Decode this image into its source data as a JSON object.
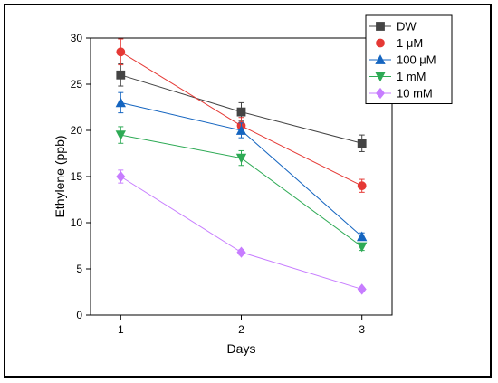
{
  "chart_data": {
    "type": "line",
    "title": "",
    "xlabel": "Days",
    "ylabel": "Ethylene (ppb)",
    "x": [
      1,
      2,
      3
    ],
    "xlim": [
      0.75,
      3.25
    ],
    "ylim": [
      0,
      30
    ],
    "x_ticks": [
      1,
      2,
      3
    ],
    "y_ticks": [
      0,
      5,
      10,
      15,
      20,
      25,
      30
    ],
    "grid": false,
    "legend_position": "top-right",
    "series": [
      {
        "name": "DW",
        "values": [
          26.0,
          22.0,
          18.6
        ],
        "errors": [
          1.2,
          1.0,
          0.9
        ],
        "color": "#444444",
        "marker": "square"
      },
      {
        "name": "1 μM",
        "values": [
          28.5,
          20.5,
          14.0
        ],
        "errors": [
          1.4,
          0.9,
          0.7
        ],
        "color": "#e53935",
        "marker": "circle"
      },
      {
        "name": "100 μM",
        "values": [
          23.0,
          20.0,
          8.5
        ],
        "errors": [
          1.1,
          0.8,
          0.4
        ],
        "color": "#1565c0",
        "marker": "triangle-up"
      },
      {
        "name": "1 mM",
        "values": [
          19.5,
          17.0,
          7.4
        ],
        "errors": [
          0.9,
          0.8,
          0.4
        ],
        "color": "#2eaa55",
        "marker": "triangle-down"
      },
      {
        "name": "10 mM",
        "values": [
          15.0,
          6.8,
          2.8
        ],
        "errors": [
          0.7,
          0.3,
          0.2
        ],
        "color": "#c77dff",
        "marker": "diamond"
      }
    ]
  }
}
